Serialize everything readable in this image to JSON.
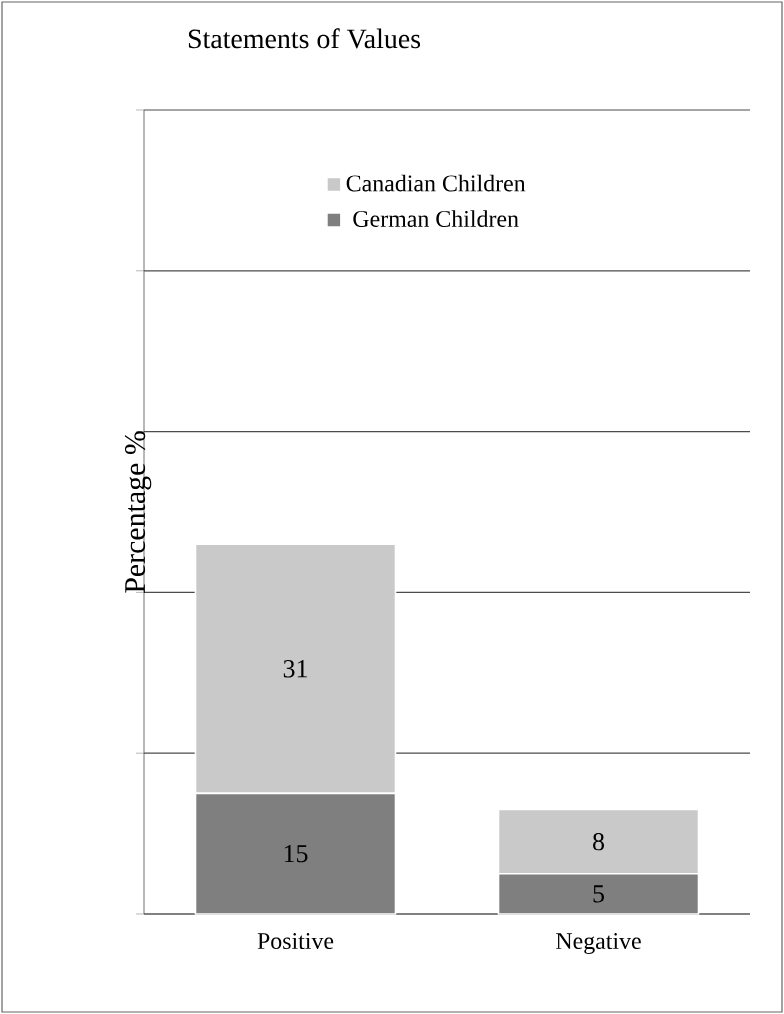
{
  "chart_data": {
    "type": "bar",
    "stacked": true,
    "title": "Statements of Values",
    "ylabel": "Percentage %",
    "categories": [
      "Positive",
      "Negative"
    ],
    "series": [
      {
        "name": "German Children",
        "color": "#7f7f7f",
        "values": [
          15,
          5
        ]
      },
      {
        "name": "Canadian Children",
        "color": "#c9c9c9",
        "values": [
          31,
          8
        ]
      }
    ],
    "ylim": [
      0,
      100
    ],
    "yticks": [
      {
        "value": 0,
        "label": null
      },
      {
        "value": 20,
        "label": null
      },
      {
        "value": 40,
        "label": null
      },
      {
        "value": 60,
        "label": null
      },
      {
        "value": 80,
        "label": null
      },
      {
        "value": 100,
        "label": null
      }
    ],
    "tick_labels": "x",
    "grid": "y",
    "legend": "top right",
    "data_labels": true
  }
}
